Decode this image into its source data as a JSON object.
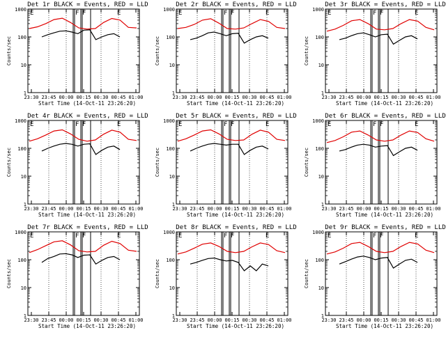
{
  "chart_data": [
    {
      "type": "line",
      "title": "Det 1r BLACK = Events, RED = LLD",
      "ylabel": "Counts/sec",
      "xlabel": "Start Time (14-Oct-11 23:26:20)",
      "yscale": "log",
      "ylim": [
        1,
        1000
      ],
      "xtick_labels": [
        "23:30",
        "23:45",
        "00:00",
        "00:15",
        "00:30",
        "00:45",
        "01:00"
      ],
      "ytick_labels": [
        "1",
        "10",
        "100",
        "1000"
      ],
      "markers": [
        "E",
        "F",
        "F",
        "E"
      ],
      "series": [
        {
          "color": "#e00000",
          "values": [
            200,
            230,
            300,
            420,
            470,
            330,
            210,
            190,
            200,
            330,
            460,
            400,
            220,
            210
          ]
        },
        {
          "color": "#000000",
          "values": [
            100,
            120,
            140,
            160,
            165,
            150,
            130,
            175,
            180,
            80,
            100,
            120,
            130,
            100
          ]
        }
      ]
    },
    {
      "type": "line",
      "title": "Det 2r BLACK = Events, RED = LLD",
      "ylabel": "Counts/sec",
      "xlabel": "Start Time (14-Oct-11 23:26:20)",
      "yscale": "log",
      "ylim": [
        1,
        1000
      ],
      "xtick_labels": [
        "23:30",
        "23:45",
        "00:00",
        "00:15",
        "00:30",
        "00:45",
        "01:00"
      ],
      "ytick_labels": [
        "1",
        "10",
        "100",
        "1000"
      ],
      "markers": [
        "E",
        "F",
        "F",
        "E"
      ],
      "series": [
        {
          "color": "#e00000",
          "values": [
            200,
            220,
            280,
            400,
            450,
            310,
            200,
            190,
            210,
            300,
            420,
            360,
            220,
            200
          ]
        },
        {
          "color": "#000000",
          "values": [
            80,
            90,
            110,
            140,
            150,
            130,
            110,
            130,
            135,
            60,
            80,
            100,
            110,
            90
          ]
        }
      ]
    },
    {
      "type": "line",
      "title": "Det 3r BLACK = Events, RED = LLD",
      "ylabel": "Counts/sec",
      "xlabel": "Start Time (14-Oct-11 23:26:20)",
      "yscale": "log",
      "ylim": [
        1,
        1000
      ],
      "xtick_labels": [
        "23:30",
        "23:45",
        "00:00",
        "00:15",
        "00:30",
        "00:45",
        "01:00"
      ],
      "ytick_labels": [
        "1",
        "10",
        "100",
        "1000"
      ],
      "markers": [
        "E",
        "F",
        "F",
        "E"
      ],
      "series": [
        {
          "color": "#e00000",
          "values": [
            160,
            190,
            260,
            380,
            420,
            300,
            190,
            180,
            200,
            300,
            420,
            370,
            220,
            180
          ]
        },
        {
          "color": "#000000",
          "values": [
            80,
            90,
            110,
            130,
            140,
            120,
            100,
            120,
            125,
            55,
            75,
            100,
            110,
            85
          ]
        }
      ]
    },
    {
      "type": "line",
      "title": "Det 4r BLACK = Events, RED = LLD",
      "ylabel": "Counts/sec",
      "xlabel": "Start Time (14-Oct-11 23:26:20)",
      "yscale": "log",
      "ylim": [
        1,
        1000
      ],
      "xtick_labels": [
        "23:30",
        "23:45",
        "00:00",
        "00:15",
        "00:30",
        "00:45",
        "01:00"
      ],
      "ytick_labels": [
        "1",
        "10",
        "100",
        "1000"
      ],
      "markers": [
        "E",
        "F",
        "F",
        "E"
      ],
      "series": [
        {
          "color": "#e00000",
          "values": [
            180,
            220,
            300,
            420,
            460,
            330,
            210,
            180,
            200,
            320,
            450,
            380,
            210,
            190
          ]
        },
        {
          "color": "#000000",
          "values": [
            80,
            100,
            120,
            140,
            150,
            140,
            120,
            140,
            145,
            60,
            85,
            110,
            120,
            90
          ]
        }
      ]
    },
    {
      "type": "line",
      "title": "Det 5r BLACK = Events, RED = LLD",
      "ylabel": "Counts/sec",
      "xlabel": "Start Time (14-Oct-11 23:26:20)",
      "yscale": "log",
      "ylim": [
        1,
        1000
      ],
      "xtick_labels": [
        "23:30",
        "23:45",
        "00:00",
        "00:15",
        "00:30",
        "00:45",
        "01:00"
      ],
      "ytick_labels": [
        "1",
        "10",
        "100",
        "1000"
      ],
      "markers": [
        "E",
        "F",
        "F",
        "E"
      ],
      "series": [
        {
          "color": "#e00000",
          "values": [
            180,
            220,
            300,
            420,
            460,
            330,
            210,
            190,
            200,
            320,
            450,
            380,
            210,
            190
          ]
        },
        {
          "color": "#000000",
          "values": [
            80,
            100,
            120,
            140,
            150,
            140,
            130,
            140,
            140,
            60,
            85,
            110,
            120,
            95
          ]
        }
      ]
    },
    {
      "type": "line",
      "title": "Det 6r BLACK = Events, RED = LLD",
      "ylabel": "Counts/sec",
      "xlabel": "Start Time (14-Oct-11 23:26:20)",
      "yscale": "log",
      "ylim": [
        1,
        1000
      ],
      "xtick_labels": [
        "23:30",
        "23:45",
        "00:00",
        "00:15",
        "00:30",
        "00:45",
        "01:00"
      ],
      "ytick_labels": [
        "1",
        "10",
        "100",
        "1000"
      ],
      "markers": [
        "E",
        "F",
        "F",
        "E"
      ],
      "series": [
        {
          "color": "#e00000",
          "values": [
            160,
            190,
            260,
            380,
            420,
            300,
            200,
            180,
            200,
            300,
            420,
            370,
            220,
            180
          ]
        },
        {
          "color": "#000000",
          "values": [
            80,
            90,
            110,
            130,
            140,
            130,
            110,
            120,
            125,
            55,
            75,
            100,
            110,
            85
          ]
        }
      ]
    },
    {
      "type": "line",
      "title": "Det 7r BLACK = Events, RED = LLD",
      "ylabel": "Counts/sec",
      "xlabel": "Start Time (14-Oct-11 23:26:20)",
      "yscale": "log",
      "ylim": [
        1,
        1000
      ],
      "xtick_labels": [
        "23:30",
        "23:45",
        "00:00",
        "00:15",
        "00:30",
        "00:45",
        "01:00"
      ],
      "ytick_labels": [
        "1",
        "10",
        "100",
        "1000"
      ],
      "markers": [
        "E",
        "F",
        "F",
        "E"
      ],
      "series": [
        {
          "color": "#e00000",
          "values": [
            180,
            230,
            320,
            440,
            480,
            340,
            210,
            190,
            200,
            330,
            460,
            380,
            220,
            200
          ]
        },
        {
          "color": "#000000",
          "values": [
            80,
            110,
            130,
            160,
            165,
            150,
            120,
            145,
            150,
            70,
            95,
            120,
            130,
            100
          ]
        }
      ]
    },
    {
      "type": "line",
      "title": "Det 8r BLACK = Events, RED = LLD",
      "ylabel": "Counts/sec",
      "xlabel": "Start Time (14-Oct-11 23:26:20)",
      "yscale": "log",
      "ylim": [
        1,
        1000
      ],
      "xtick_labels": [
        "23:30",
        "23:45",
        "00:00",
        "00:15",
        "00:30",
        "00:45",
        "01:00"
      ],
      "ytick_labels": [
        "1",
        "10",
        "100",
        "1000"
      ],
      "markers": [
        "E",
        "F",
        "F",
        "E"
      ],
      "series": [
        {
          "color": "#e00000",
          "values": [
            160,
            190,
            260,
            360,
            400,
            300,
            200,
            180,
            200,
            290,
            400,
            350,
            210,
            180
          ]
        },
        {
          "color": "#000000",
          "values": [
            70,
            80,
            95,
            110,
            115,
            100,
            90,
            95,
            80,
            40,
            60,
            40,
            70,
            60
          ]
        }
      ]
    },
    {
      "type": "line",
      "title": "Det 9r BLACK = Events, RED = LLD",
      "ylabel": "Counts/sec",
      "xlabel": "Start Time (14-Oct-11 23:26:20)",
      "yscale": "log",
      "ylim": [
        1,
        1000
      ],
      "xtick_labels": [
        "23:30",
        "23:45",
        "00:00",
        "00:15",
        "00:30",
        "00:45",
        "01:00"
      ],
      "ytick_labels": [
        "1",
        "10",
        "100",
        "1000"
      ],
      "markers": [
        "E",
        "F",
        "F",
        "E"
      ],
      "series": [
        {
          "color": "#e00000",
          "values": [
            160,
            190,
            260,
            380,
            420,
            300,
            200,
            180,
            200,
            300,
            420,
            370,
            220,
            180
          ]
        },
        {
          "color": "#000000",
          "values": [
            70,
            85,
            105,
            125,
            135,
            120,
            100,
            115,
            120,
            50,
            70,
            95,
            105,
            80
          ]
        }
      ]
    }
  ]
}
